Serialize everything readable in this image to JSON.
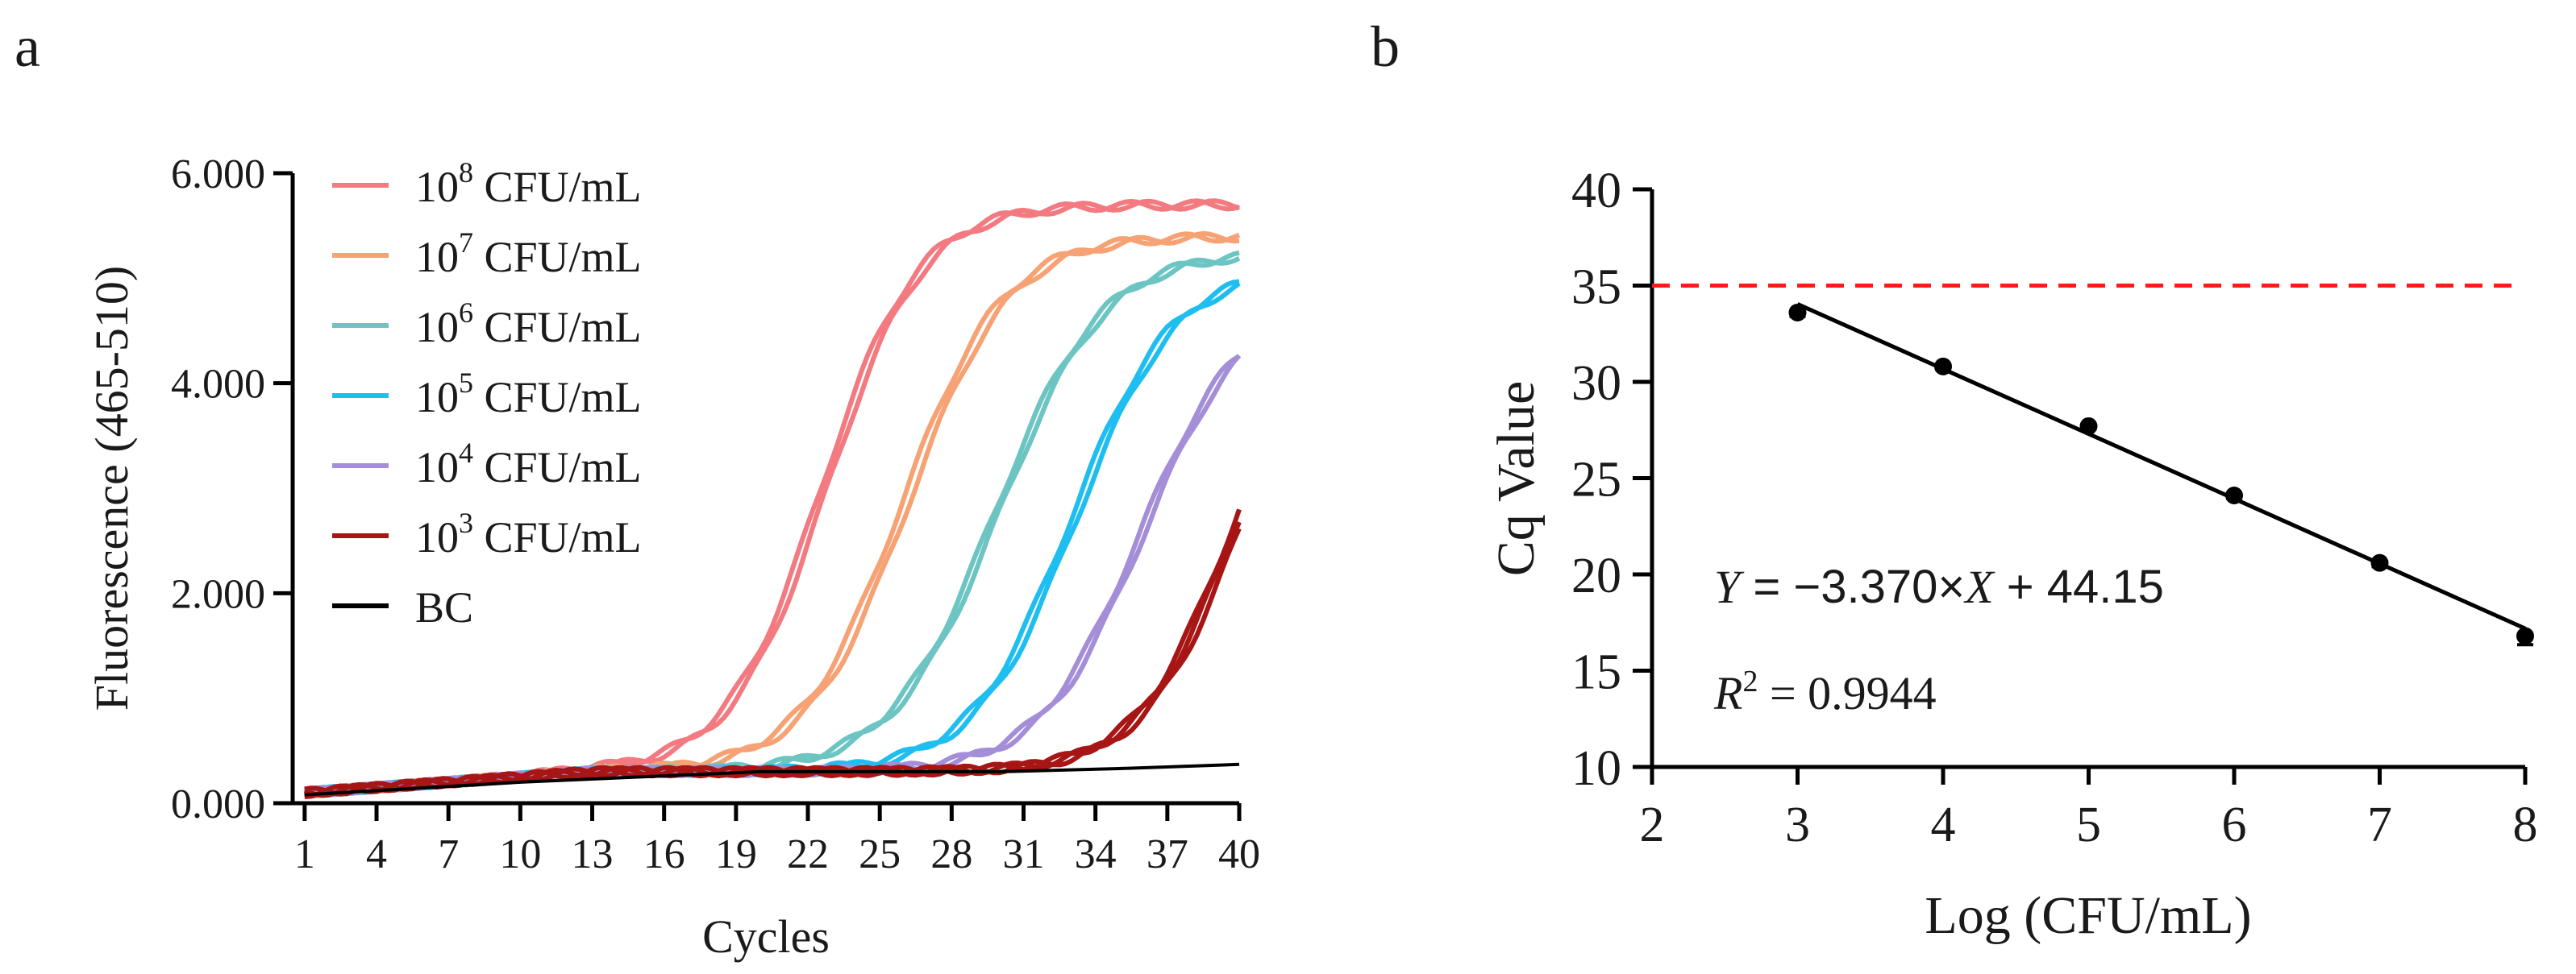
{
  "panel_a": {
    "panel_label": "a",
    "legend": [
      {
        "base": "10",
        "exp": "8",
        "unit": "CFU/mL",
        "color": "#F27A80"
      },
      {
        "base": "10",
        "exp": "7",
        "unit": "CFU/mL",
        "color": "#F6A274"
      },
      {
        "base": "10",
        "exp": "6",
        "unit": "CFU/mL",
        "color": "#6DC5C3"
      },
      {
        "base": "10",
        "exp": "5",
        "unit": "CFU/mL",
        "color": "#1FBEF0"
      },
      {
        "base": "10",
        "exp": "4",
        "unit": "CFU/mL",
        "color": "#A48ED8"
      },
      {
        "base": "10",
        "exp": "3",
        "unit": "CFU/mL",
        "color": "#A81515"
      },
      {
        "base": "",
        "exp": "",
        "unit": "BC",
        "color": "#000000"
      }
    ]
  },
  "panel_b": {
    "panel_label": "b",
    "equation": {
      "y": "Y",
      "middle": " = −3.370×",
      "x": "X",
      "tail": " + 44.15"
    },
    "r2": {
      "r": "R",
      "exp": "2",
      "tail": " = 0.9944"
    }
  },
  "chart_data": [
    {
      "type": "line",
      "title": "",
      "xlabel": "Cycles",
      "ylabel": "Fluorescence (465-510)",
      "x_range": [
        1,
        40
      ],
      "xlim": [
        0.5,
        40
      ],
      "ylim": [
        0,
        6
      ],
      "x_ticks": [
        1,
        4,
        7,
        10,
        13,
        16,
        19,
        22,
        25,
        28,
        31,
        34,
        37,
        40
      ],
      "y_ticks": [
        0,
        2,
        4,
        6
      ],
      "y_tick_labels": [
        "0.000",
        "2.000",
        "4.000",
        "6.000"
      ],
      "legend_position": "top-left",
      "series": [
        {
          "name": "10^8 CFU/mL",
          "color": "#F27A80",
          "baseline": 0.1,
          "ct": 18,
          "midpoint": 22.8,
          "slope": 0.21,
          "plateau": 5.4,
          "replicates": [
            0,
            -0.25
          ]
        },
        {
          "name": "10^7 CFU/mL",
          "color": "#F6A274",
          "baseline": 0.1,
          "ct": 21,
          "midpoint": 26.2,
          "slope": 0.2,
          "plateau": 5.1,
          "replicates": [
            0,
            -0.3
          ]
        },
        {
          "name": "10^6 CFU/mL",
          "color": "#6DC5C3",
          "baseline": 0.1,
          "ct": 24,
          "midpoint": 30.0,
          "slope": 0.19,
          "plateau": 4.95,
          "replicates": [
            0,
            -0.2
          ]
        },
        {
          "name": "10^5 CFU/mL",
          "color": "#1FBEF0",
          "baseline": 0.1,
          "ct": 27,
          "midpoint": 33.2,
          "slope": 0.2,
          "plateau": 4.8,
          "replicates": [
            0,
            -0.25
          ]
        },
        {
          "name": "10^4 CFU/mL",
          "color": "#A48ED8",
          "baseline": 0.1,
          "ct": 30,
          "midpoint": 36.0,
          "slope": 0.2,
          "plateau": 4.5,
          "replicates": [
            0,
            -0.2
          ]
        },
        {
          "name": "10^3 CFU/mL",
          "color": "#A81515",
          "baseline": 0.1,
          "ct": 33,
          "midpoint": 40.0,
          "slope": 0.21,
          "plateau": 4.6,
          "replicates": [
            0,
            -0.2,
            -0.35
          ]
        },
        {
          "name": "BC",
          "color": "#000000",
          "x": [
            1,
            10,
            20,
            30,
            35,
            40
          ],
          "y": [
            0.08,
            0.2,
            0.3,
            0.3,
            0.33,
            0.37
          ]
        }
      ]
    },
    {
      "type": "scatter",
      "title": "",
      "xlabel": "Log (CFU/mL)",
      "ylabel": "Cq Value",
      "xlim": [
        2,
        8
      ],
      "ylim": [
        10,
        40
      ],
      "x_ticks": [
        2,
        3,
        4,
        5,
        6,
        7,
        8
      ],
      "y_ticks": [
        10,
        15,
        20,
        25,
        30,
        35,
        40
      ],
      "x": [
        3,
        4,
        5,
        6,
        7,
        8
      ],
      "y": [
        33.6,
        30.8,
        27.7,
        24.1,
        20.6,
        16.8
      ],
      "y_err": [
        0.2,
        0.15,
        0.15,
        0.15,
        0.2,
        0.45
      ],
      "fit": {
        "slope": -3.37,
        "intercept": 44.15,
        "r2": 0.9944,
        "x_range": [
          3,
          8
        ]
      },
      "threshold": {
        "y": 35,
        "color": "#FF1A1A",
        "style": "dashed"
      }
    }
  ]
}
